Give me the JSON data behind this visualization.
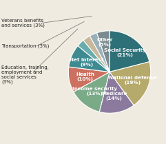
{
  "slices": [
    {
      "label": "Social Security\n(21%)",
      "value": 21,
      "color": "#2d7077"
    },
    {
      "label": "National defense\n(19%)",
      "value": 19,
      "color": "#b5a96b"
    },
    {
      "label": "Medicare\n(14%)",
      "value": 14,
      "color": "#8b7a9e"
    },
    {
      "label": "Income security\n(13%)",
      "value": 13,
      "color": "#7aaa87"
    },
    {
      "label": "Health\n(10%)",
      "value": 10,
      "color": "#cc7060"
    },
    {
      "label": "Net interest\n(9%)",
      "value": 9,
      "color": "#3d8a90"
    },
    {
      "label": "Education, training,\nemployment and\nsocial services\n(3%)",
      "value": 3,
      "color": "#6aacac"
    },
    {
      "label": "Transportation (3%)",
      "value": 3,
      "color": "#c8b89a"
    },
    {
      "label": "Veterans benefits\nand services (3%)",
      "value": 3,
      "color": "#9ab0b8"
    },
    {
      "label": "Other\n(5%)",
      "value": 5,
      "color": "#7a8a8e"
    }
  ],
  "figsize": [
    2.41,
    2.09
  ],
  "dpi": 100,
  "label_fontsize": 5.2,
  "inside_label_color": "white",
  "background_color": "#f0ebe0",
  "start_angle": 90
}
